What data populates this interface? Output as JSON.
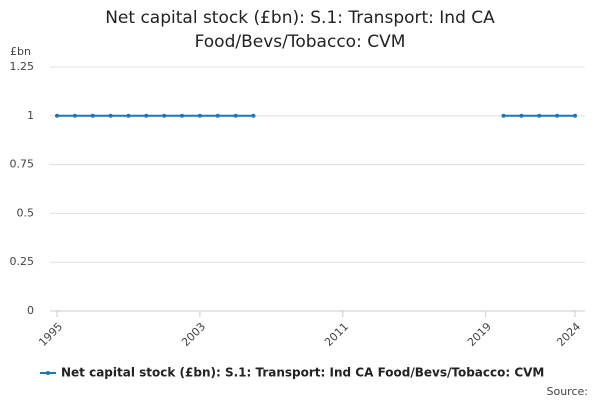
{
  "chart_data": {
    "type": "line",
    "title": "Net capital stock (£bn): S.1: Transport: Ind CA Food/Bevs/Tobacco: CVM",
    "y_unit": "£bn",
    "source": "Source:",
    "x": [
      1995,
      1996,
      1997,
      1998,
      1999,
      2000,
      2001,
      2002,
      2003,
      2004,
      2005,
      2006,
      2007,
      2008,
      2009,
      2010,
      2011,
      2012,
      2013,
      2014,
      2015,
      2016,
      2017,
      2018,
      2019,
      2020,
      2021,
      2022,
      2023,
      2024
    ],
    "series": [
      {
        "name": "Net capital stock (£bn): S.1: Transport: Ind CA Food/Bevs/Tobacco: CVM",
        "color": "#1f77b4",
        "values": [
          1,
          1,
          1,
          1,
          1,
          1,
          1,
          1,
          1,
          1,
          1,
          1,
          null,
          null,
          null,
          null,
          null,
          null,
          null,
          null,
          null,
          null,
          null,
          null,
          null,
          1,
          1,
          1,
          1,
          1
        ]
      }
    ],
    "xlim": [
      1995,
      2024
    ],
    "xticks": [
      1995,
      2003,
      2011,
      2019,
      2024
    ],
    "ylim": [
      0,
      1.25
    ],
    "yticks": [
      0,
      0.25,
      0.5,
      0.75,
      1,
      1.25
    ],
    "grid": true
  }
}
